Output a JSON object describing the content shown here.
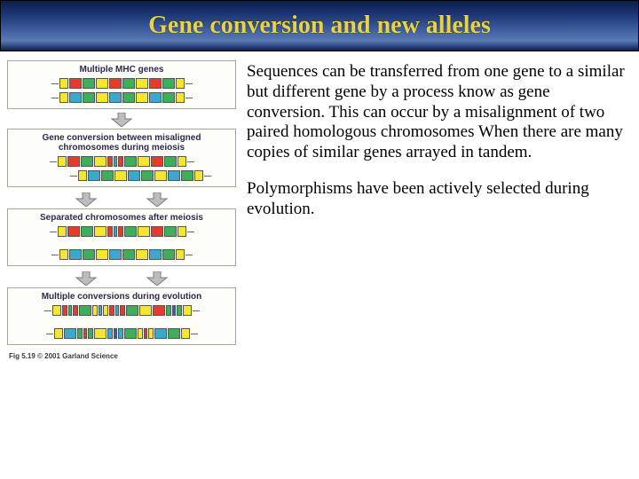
{
  "title": "Gene conversion and new alleles",
  "paragraph1": "Sequences can be transferred from one gene to a similar but different gene by a process know as gene conversion. This can occur by a misalignment of two paired homologous chromosomes When there are many copies of similar genes arrayed in tandem.",
  "paragraph2": "Polymorphisms have been actively selected during evolution.",
  "figure": {
    "panel1_label": "Multiple MHC genes",
    "panel2_label": "Gene conversion between misaligned chromosomes during meiosis",
    "panel3_label": "Separated chromosomes after meiosis",
    "panel4_label": "Multiple conversions during evolution",
    "caption": "Fig 5.19   © 2001 Garland Science",
    "colors": {
      "yellow": "#f5e632",
      "red": "#e33b2e",
      "green": "#3fae5a",
      "cyan": "#3aa9cc",
      "blue": "#2a5fd0",
      "arrow": "#bdbdbd",
      "arrow_border": "#7a7a7a"
    },
    "seg_w": {
      "end": 10,
      "body": 14,
      "narrow": 6,
      "tiny": 4
    },
    "panel1_rows": [
      [
        {
          "c": "yellow",
          "w": "end"
        },
        {
          "c": "red",
          "w": "body"
        },
        {
          "c": "green",
          "w": "body"
        },
        {
          "c": "yellow",
          "w": "body"
        },
        {
          "c": "red",
          "w": "body"
        },
        {
          "c": "green",
          "w": "body"
        },
        {
          "c": "yellow",
          "w": "body"
        },
        {
          "c": "red",
          "w": "body"
        },
        {
          "c": "green",
          "w": "body"
        },
        {
          "c": "yellow",
          "w": "end"
        }
      ],
      [
        {
          "c": "yellow",
          "w": "end"
        },
        {
          "c": "cyan",
          "w": "body"
        },
        {
          "c": "green",
          "w": "body"
        },
        {
          "c": "yellow",
          "w": "body"
        },
        {
          "c": "cyan",
          "w": "body"
        },
        {
          "c": "green",
          "w": "body"
        },
        {
          "c": "yellow",
          "w": "body"
        },
        {
          "c": "cyan",
          "w": "body"
        },
        {
          "c": "green",
          "w": "body"
        },
        {
          "c": "yellow",
          "w": "end"
        }
      ]
    ],
    "panel2_rows": [
      [
        {
          "c": "yellow",
          "w": "end"
        },
        {
          "c": "red",
          "w": "body"
        },
        {
          "c": "green",
          "w": "body"
        },
        {
          "c": "yellow",
          "w": "body"
        },
        {
          "c": "red",
          "w": "narrow"
        },
        {
          "c": "cyan",
          "w": "tiny"
        },
        {
          "c": "red",
          "w": "narrow"
        },
        {
          "c": "green",
          "w": "body"
        },
        {
          "c": "yellow",
          "w": "body"
        },
        {
          "c": "red",
          "w": "body"
        },
        {
          "c": "green",
          "w": "body"
        },
        {
          "c": "yellow",
          "w": "end"
        }
      ],
      [
        {
          "c": "yellow",
          "w": "end"
        },
        {
          "c": "cyan",
          "w": "body"
        },
        {
          "c": "green",
          "w": "body"
        },
        {
          "c": "yellow",
          "w": "body"
        },
        {
          "c": "cyan",
          "w": "body"
        },
        {
          "c": "green",
          "w": "body"
        },
        {
          "c": "yellow",
          "w": "body"
        },
        {
          "c": "cyan",
          "w": "body"
        },
        {
          "c": "green",
          "w": "body"
        },
        {
          "c": "yellow",
          "w": "end"
        }
      ]
    ],
    "panel3_rows": [
      [
        {
          "c": "yellow",
          "w": "end"
        },
        {
          "c": "red",
          "w": "body"
        },
        {
          "c": "green",
          "w": "body"
        },
        {
          "c": "yellow",
          "w": "body"
        },
        {
          "c": "red",
          "w": "narrow"
        },
        {
          "c": "cyan",
          "w": "tiny"
        },
        {
          "c": "red",
          "w": "narrow"
        },
        {
          "c": "green",
          "w": "body"
        },
        {
          "c": "yellow",
          "w": "body"
        },
        {
          "c": "red",
          "w": "body"
        },
        {
          "c": "green",
          "w": "body"
        },
        {
          "c": "yellow",
          "w": "end"
        }
      ],
      [
        {
          "c": "yellow",
          "w": "end"
        },
        {
          "c": "cyan",
          "w": "body"
        },
        {
          "c": "green",
          "w": "body"
        },
        {
          "c": "yellow",
          "w": "body"
        },
        {
          "c": "cyan",
          "w": "body"
        },
        {
          "c": "green",
          "w": "body"
        },
        {
          "c": "yellow",
          "w": "body"
        },
        {
          "c": "cyan",
          "w": "body"
        },
        {
          "c": "green",
          "w": "body"
        },
        {
          "c": "yellow",
          "w": "end"
        }
      ]
    ],
    "panel4_rows": [
      [
        {
          "c": "yellow",
          "w": "end"
        },
        {
          "c": "red",
          "w": "narrow"
        },
        {
          "c": "green",
          "w": "tiny"
        },
        {
          "c": "red",
          "w": "narrow"
        },
        {
          "c": "green",
          "w": "body"
        },
        {
          "c": "yellow",
          "w": "narrow"
        },
        {
          "c": "cyan",
          "w": "tiny"
        },
        {
          "c": "yellow",
          "w": "narrow"
        },
        {
          "c": "red",
          "w": "narrow"
        },
        {
          "c": "cyan",
          "w": "tiny"
        },
        {
          "c": "red",
          "w": "narrow"
        },
        {
          "c": "green",
          "w": "body"
        },
        {
          "c": "yellow",
          "w": "body"
        },
        {
          "c": "red",
          "w": "body"
        },
        {
          "c": "green",
          "w": "narrow"
        },
        {
          "c": "blue",
          "w": "tiny"
        },
        {
          "c": "green",
          "w": "narrow"
        },
        {
          "c": "yellow",
          "w": "end"
        }
      ],
      [
        {
          "c": "yellow",
          "w": "end"
        },
        {
          "c": "cyan",
          "w": "body"
        },
        {
          "c": "green",
          "w": "narrow"
        },
        {
          "c": "red",
          "w": "tiny"
        },
        {
          "c": "green",
          "w": "narrow"
        },
        {
          "c": "yellow",
          "w": "body"
        },
        {
          "c": "cyan",
          "w": "narrow"
        },
        {
          "c": "blue",
          "w": "tiny"
        },
        {
          "c": "cyan",
          "w": "narrow"
        },
        {
          "c": "green",
          "w": "body"
        },
        {
          "c": "yellow",
          "w": "narrow"
        },
        {
          "c": "red",
          "w": "tiny"
        },
        {
          "c": "yellow",
          "w": "narrow"
        },
        {
          "c": "cyan",
          "w": "body"
        },
        {
          "c": "green",
          "w": "body"
        },
        {
          "c": "yellow",
          "w": "end"
        }
      ]
    ]
  }
}
